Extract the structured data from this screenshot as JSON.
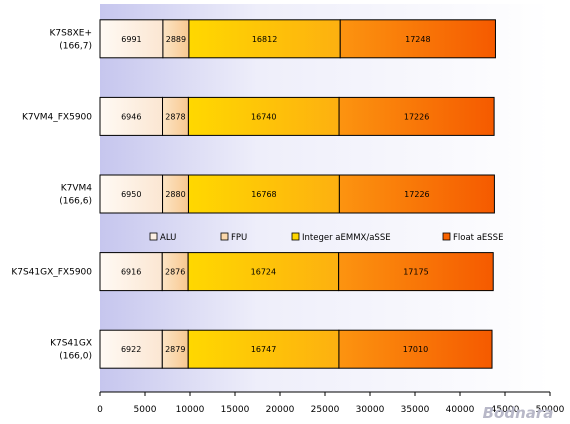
{
  "chart_data": {
    "type": "bar",
    "orientation": "horizontal",
    "stacked": true,
    "categories": [
      [
        "K7S8XE+",
        "(166,7)"
      ],
      [
        "K7VM4_FX5900"
      ],
      [
        "K7VM4",
        "(166,6)"
      ],
      [
        "K7S41GX_FX5900"
      ],
      [
        "K7S41GX",
        "(166,0)"
      ]
    ],
    "series": [
      {
        "name": "ALU",
        "values": [
          6991,
          6946,
          6950,
          6916,
          6922
        ]
      },
      {
        "name": "FPU",
        "values": [
          2889,
          2878,
          2880,
          2876,
          2879
        ]
      },
      {
        "name": "Integer aEMMX/aSSE",
        "values": [
          16812,
          16740,
          16768,
          16724,
          16747
        ]
      },
      {
        "name": "Float aESSE",
        "values": [
          17248,
          17226,
          17226,
          17175,
          17010
        ]
      }
    ],
    "series_colors": [
      "#fdf0e4",
      "#fbd8ac",
      "#fed600",
      "#fa6400"
    ],
    "xlim": [
      0,
      50000
    ],
    "xticks": [
      0,
      5000,
      10000,
      15000,
      20000,
      25000,
      30000,
      35000,
      40000,
      45000,
      50000
    ],
    "xtick_labels": [
      "0",
      "5000",
      "10000",
      "15000",
      "20000",
      "25000",
      "30000",
      "35000",
      "40000",
      "45000",
      "50000"
    ],
    "legend_position": "middle",
    "grid": false,
    "watermark": "Bodnara"
  }
}
